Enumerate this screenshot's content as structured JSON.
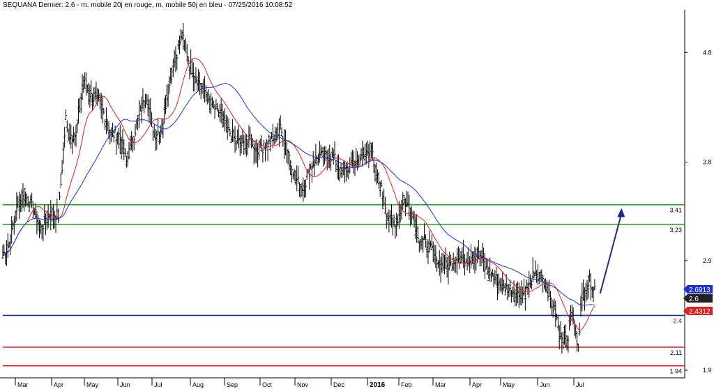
{
  "chart_data": {
    "type": "ohlc",
    "title": "SEQUANA Dernier: 2.6 - m. mobile 20j en rouge, m. mobile 50j en bleu - 07/25/2016 10:08:52",
    "x_ticks": [
      {
        "label": "Mar",
        "bold": false
      },
      {
        "label": "Apr",
        "bold": false
      },
      {
        "label": "May",
        "bold": false
      },
      {
        "label": "Jun",
        "bold": false
      },
      {
        "label": "Jul",
        "bold": false
      },
      {
        "label": "Aug",
        "bold": false
      },
      {
        "label": "Sep",
        "bold": false
      },
      {
        "label": "Oct",
        "bold": false
      },
      {
        "label": "Nov",
        "bold": false
      },
      {
        "label": "Dec",
        "bold": false
      },
      {
        "label": "2016",
        "bold": true
      },
      {
        "label": "Feb",
        "bold": false
      },
      {
        "label": "Mar",
        "bold": false
      },
      {
        "label": "Apr",
        "bold": false
      },
      {
        "label": "May",
        "bold": false
      },
      {
        "label": "Jun",
        "bold": false
      },
      {
        "label": "Jul",
        "bold": false
      }
    ],
    "y_ticks": [
      1.9,
      2.9,
      3.8,
      4.8
    ],
    "ylim": [
      1.83,
      5.19
    ],
    "price_path": [
      [
        0,
        2.95
      ],
      [
        5,
        3.05
      ],
      [
        12,
        3.42
      ],
      [
        18,
        3.5
      ],
      [
        25,
        3.35
      ],
      [
        30,
        3.2
      ],
      [
        34,
        3.25
      ],
      [
        38,
        3.35
      ],
      [
        44,
        3.3
      ],
      [
        50,
        4.2
      ],
      [
        52,
        4.05
      ],
      [
        58,
        4.05
      ],
      [
        64,
        4.55
      ],
      [
        70,
        4.4
      ],
      [
        76,
        4.35
      ],
      [
        80,
        4.25
      ],
      [
        86,
        4.05
      ],
      [
        92,
        4.05
      ],
      [
        98,
        3.8
      ],
      [
        104,
        4.05
      ],
      [
        110,
        4.3
      ],
      [
        114,
        4.4
      ],
      [
        120,
        4.05
      ],
      [
        126,
        4.1
      ],
      [
        132,
        4.55
      ],
      [
        138,
        4.8
      ],
      [
        142,
        4.95
      ],
      [
        148,
        4.7
      ],
      [
        154,
        4.55
      ],
      [
        160,
        4.45
      ],
      [
        166,
        4.3
      ],
      [
        172,
        4.25
      ],
      [
        178,
        4.1
      ],
      [
        184,
        4.0
      ],
      [
        190,
        3.95
      ],
      [
        196,
        4.0
      ],
      [
        202,
        3.9
      ],
      [
        208,
        3.95
      ],
      [
        214,
        4.0
      ],
      [
        220,
        4.1
      ],
      [
        226,
        3.9
      ],
      [
        232,
        3.65
      ],
      [
        238,
        3.55
      ],
      [
        244,
        3.75
      ],
      [
        250,
        3.85
      ],
      [
        256,
        3.85
      ],
      [
        262,
        3.85
      ],
      [
        268,
        3.7
      ],
      [
        274,
        3.75
      ],
      [
        280,
        3.8
      ],
      [
        286,
        3.85
      ],
      [
        292,
        3.95
      ],
      [
        294,
        3.75
      ],
      [
        300,
        3.55
      ],
      [
        306,
        3.25
      ],
      [
        312,
        3.25
      ],
      [
        318,
        3.45
      ],
      [
        324,
        3.35
      ],
      [
        330,
        3.1
      ],
      [
        336,
        3.05
      ],
      [
        342,
        2.95
      ],
      [
        348,
        2.85
      ],
      [
        354,
        2.85
      ],
      [
        360,
        2.95
      ],
      [
        366,
        2.9
      ],
      [
        372,
        2.95
      ],
      [
        378,
        2.95
      ],
      [
        384,
        2.8
      ],
      [
        390,
        2.75
      ],
      [
        396,
        2.65
      ],
      [
        402,
        2.65
      ],
      [
        408,
        2.6
      ],
      [
        414,
        2.6
      ],
      [
        420,
        2.75
      ],
      [
        426,
        2.75
      ],
      [
        430,
        2.65
      ],
      [
        434,
        2.55
      ],
      [
        438,
        2.45
      ],
      [
        441,
        2.25
      ],
      [
        444,
        2.2
      ],
      [
        448,
        2.2
      ],
      [
        450,
        2.45
      ],
      [
        452,
        2.35
      ],
      [
        454,
        2.2
      ],
      [
        456,
        2.15
      ],
      [
        458,
        2.45
      ],
      [
        460,
        2.6
      ],
      [
        462,
        2.65
      ],
      [
        465,
        2.72
      ],
      [
        468,
        2.66
      ]
    ],
    "series": [
      {
        "name": "m. mobile 20j",
        "color": "#e02020"
      },
      {
        "name": "m. mobile 50j",
        "color": "#2030d0"
      }
    ],
    "annotations": {
      "horizontal_lines": [
        {
          "value": 3.41,
          "label": "3.41",
          "color": "#1ea01e"
        },
        {
          "value": 3.23,
          "label": "3.23",
          "color": "#1ea01e"
        },
        {
          "value": 2.4,
          "label": "2.4",
          "color": "#1c2aa0"
        },
        {
          "value": 2.11,
          "label": "2.11",
          "color": "#e02020"
        },
        {
          "value": 1.94,
          "label": "1.94",
          "color": "#e02020"
        }
      ],
      "price_badges": [
        {
          "label": "2.6913",
          "color": "#2030d0"
        },
        {
          "label": "2.6",
          "color": "#222222"
        },
        {
          "label": "2.4312",
          "color": "#e02020"
        }
      ],
      "arrow": {
        "color": "#1c2a8a",
        "from": [
          470,
          2.6
        ],
        "to": [
          488,
          3.38
        ]
      }
    }
  }
}
